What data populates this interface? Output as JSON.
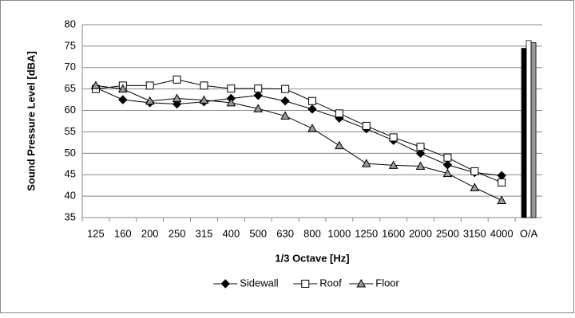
{
  "chart_data": {
    "type": "line",
    "x_label": "1/3 Octave [Hz]",
    "y_label": "Sound Pressure Level [dBA]",
    "categories": [
      "125",
      "160",
      "200",
      "250",
      "315",
      "400",
      "500",
      "630",
      "800",
      "1000",
      "1250",
      "1600",
      "2000",
      "2500",
      "3150",
      "4000",
      "O/A"
    ],
    "overall_as_bars": true,
    "series": [
      {
        "name": "Sidewall",
        "color": "#000000",
        "marker": "diamond",
        "marker_fill": "#000000",
        "values": [
          65.3,
          62.5,
          61.8,
          61.5,
          62,
          62.8,
          63.5,
          62.2,
          60.3,
          58.2,
          55.7,
          53,
          50,
          47.3,
          45.5,
          44.8,
          74.5
        ]
      },
      {
        "name": "Roof",
        "color": "#000000",
        "marker": "square",
        "marker_fill": "#ffffff",
        "values": [
          65,
          65.8,
          65.8,
          67.2,
          65.8,
          65.1,
          65.1,
          65,
          62.2,
          59.3,
          56.4,
          53.7,
          51.5,
          49,
          45.8,
          43.2,
          76.3
        ]
      },
      {
        "name": "Floor",
        "color": "#000000",
        "marker": "triangle",
        "marker_fill": "#999999",
        "values": [
          65.8,
          65,
          62.2,
          62.8,
          62.4,
          61.8,
          60.4,
          58.7,
          55.8,
          51.8,
          47.6,
          47.2,
          47,
          45.3,
          42,
          39,
          75.8
        ]
      }
    ],
    "ylim": [
      35,
      80
    ],
    "yticks": [
      35,
      40,
      45,
      50,
      55,
      60,
      65,
      70,
      75,
      80
    ],
    "grid": true,
    "legend": "bottom"
  }
}
